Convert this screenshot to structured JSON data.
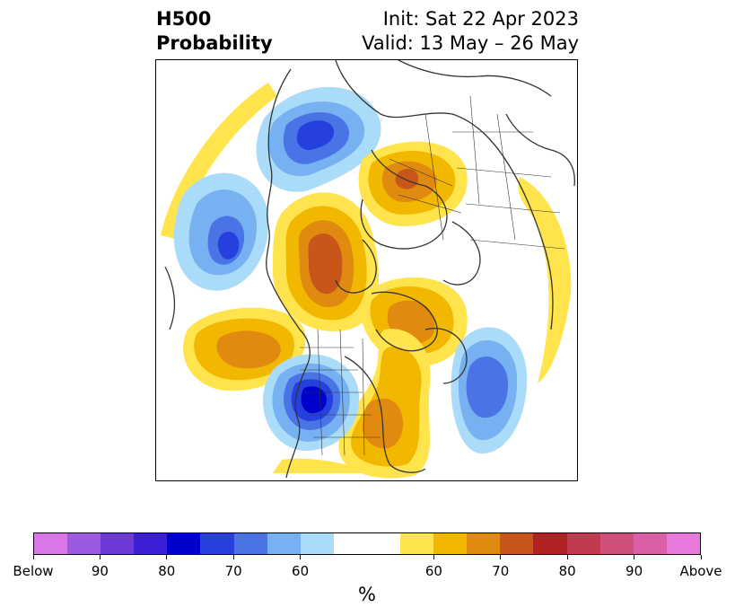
{
  "title": {
    "left_line1": "H500",
    "left_line2": "Probability",
    "init": "Init: Sat 22 Apr 2023",
    "valid": "Valid: 13 May – 26 May"
  },
  "colorbar": {
    "units": "%",
    "colors_below": [
      "#d977e8",
      "#9c5ae3",
      "#6c3ad9",
      "#3a1fd6",
      "#0000cc",
      "#2640dd",
      "#4a74e6",
      "#77b1f2",
      "#aadcf9"
    ],
    "neutral_color": "#ffffff",
    "colors_above": [
      "#ffe44d",
      "#f2b800",
      "#e08a10",
      "#c8561a",
      "#b22222",
      "#c23a50",
      "#d0507c",
      "#db5fa6",
      "#e77adc"
    ],
    "tick_labels": [
      "Below",
      "90",
      "80",
      "70",
      "60",
      "60",
      "70",
      "80",
      "90",
      "Above"
    ]
  },
  "map": {
    "colors": {
      "c55": "#ffe44d",
      "c60": "#f2b800",
      "c65": "#e08a10",
      "c70": "#c8561a",
      "b55": "#aadcf9",
      "b60": "#77b1f2",
      "b65": "#4a74e6",
      "b70": "#2640dd",
      "b75": "#0000cc",
      "coast": "#333333"
    }
  }
}
